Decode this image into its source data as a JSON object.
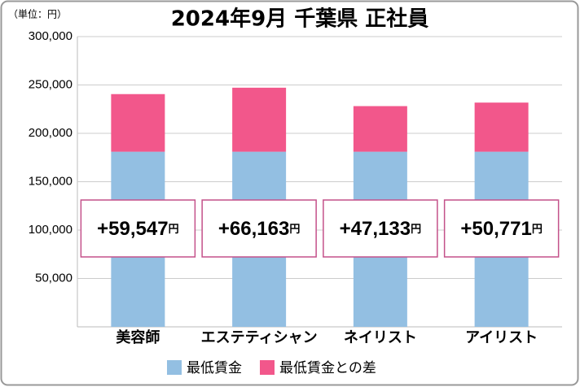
{
  "chart_data": {
    "type": "stacked-bar",
    "title": "2024年9月 千葉県 正社員",
    "unit_label": "（単位：円）",
    "categories": [
      "美容師",
      "エステティシャン",
      "ネイリスト",
      "アイリスト"
    ],
    "series": [
      {
        "name": "最低賃金",
        "color": "#93bfe2",
        "values": [
          181000,
          181000,
          181000,
          181000
        ]
      },
      {
        "name": "最低賃金との差",
        "color": "#f2578b",
        "values": [
          59547,
          66163,
          47133,
          50771
        ],
        "value_labels": [
          "+59,547円",
          "+66,163円",
          "+47,133円",
          "+50,771円"
        ]
      }
    ],
    "ylim": [
      0,
      300000
    ],
    "yticks": [
      {
        "value": 50000,
        "label": "50,000"
      },
      {
        "value": 100000,
        "label": "100,000"
      },
      {
        "value": 150000,
        "label": "150,000"
      },
      {
        "value": 200000,
        "label": "200,000"
      },
      {
        "value": 250000,
        "label": "250,000"
      },
      {
        "value": 300000,
        "label": "300,000"
      }
    ],
    "grid": true
  }
}
